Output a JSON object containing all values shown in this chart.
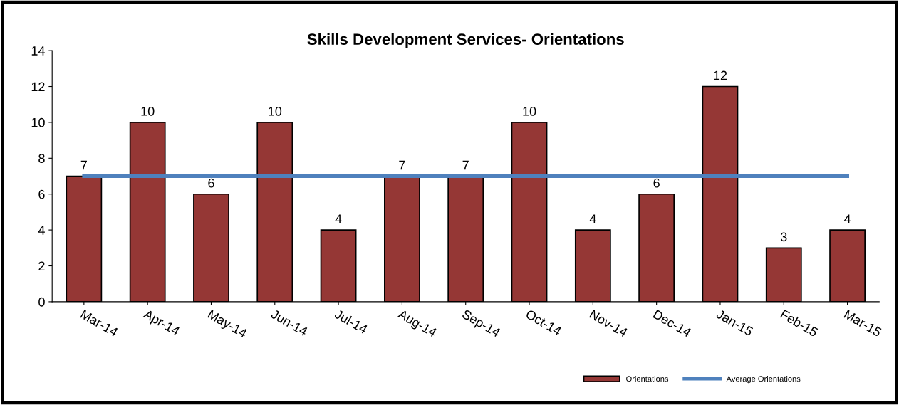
{
  "chart_data": {
    "type": "bar",
    "title": "Skills Development Services- Orientations",
    "categories": [
      "Mar-14",
      "Apr-14",
      "May-14",
      "Jun-14",
      "Jul-14",
      "Aug-14",
      "Sep-14",
      "Oct-14",
      "Nov-14",
      "Dec-14",
      "Jan-15",
      "Feb-15",
      "Mar-15"
    ],
    "series": [
      {
        "name": "Orientations",
        "color": "#953735",
        "values": [
          7,
          10,
          6,
          10,
          4,
          7,
          7,
          10,
          4,
          6,
          12,
          3,
          4
        ],
        "value_labels": [
          "7",
          "10",
          "6",
          "10",
          "4",
          "7",
          "7",
          "10",
          "4",
          "6",
          "12",
          "3",
          "4"
        ]
      },
      {
        "name": "Average Orientations",
        "type": "line",
        "color": "#4f81bd",
        "values": [
          7,
          7,
          7,
          7,
          7,
          7,
          7,
          7,
          7,
          7,
          7,
          7,
          7
        ]
      }
    ],
    "ylim": [
      0,
      14
    ],
    "yticks": [
      0,
      2,
      4,
      6,
      8,
      10,
      12,
      14
    ],
    "grid": false,
    "legend": "bottom",
    "marker": "none",
    "line_style": "solid"
  }
}
